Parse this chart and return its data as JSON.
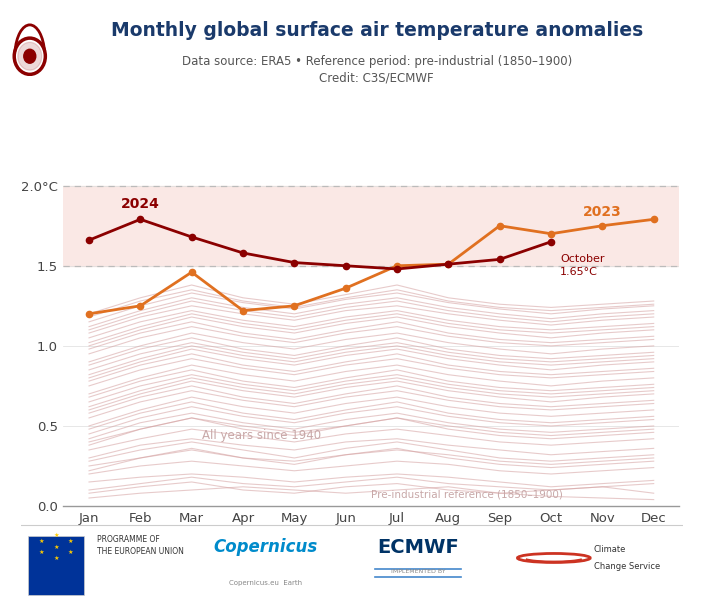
{
  "title": "Monthly global surface air temperature anomalies",
  "subtitle1": "Data source: ERA5 • Reference period: pre-industrial (1850–1900)",
  "subtitle2": "Credit: C3S/ECMWF",
  "months": [
    "Jan",
    "Feb",
    "Mar",
    "Apr",
    "May",
    "Jun",
    "Jul",
    "Aug",
    "Sep",
    "Oct",
    "Nov",
    "Dec"
  ],
  "data_2024": [
    1.66,
    1.79,
    1.68,
    1.58,
    1.52,
    1.5,
    1.48,
    1.51,
    1.54,
    1.65,
    null,
    null
  ],
  "data_2023": [
    1.2,
    1.25,
    1.46,
    1.22,
    1.25,
    1.36,
    1.5,
    1.51,
    1.75,
    1.7,
    1.75,
    1.79
  ],
  "color_2024": "#8B0000",
  "color_2023": "#E07020",
  "background_fill_color": "#FAE8E5",
  "threshold_1_5": 1.5,
  "threshold_2_0": 2.0,
  "ylim": [
    0.0,
    2.1
  ],
  "yticks": [
    0.0,
    0.5,
    1.0,
    1.5,
    2.0
  ],
  "label_2024": "2024",
  "label_2023": "2023",
  "all_years_label": "All years since 1940",
  "preindustrial_label": "Pre-industrial reference (1850–1900)",
  "historical_line_color": "#D4A0A0",
  "historical_years": [
    [
      0.05,
      0.08,
      0.1,
      0.12,
      0.1,
      0.08,
      0.1,
      0.12,
      0.08,
      0.06,
      0.05,
      0.04
    ],
    [
      0.08,
      0.12,
      0.15,
      0.1,
      0.08,
      0.12,
      0.14,
      0.1,
      0.08,
      0.1,
      0.12,
      0.08
    ],
    [
      0.15,
      0.18,
      0.2,
      0.18,
      0.15,
      0.18,
      0.2,
      0.18,
      0.15,
      0.12,
      0.14,
      0.16
    ],
    [
      0.2,
      0.25,
      0.28,
      0.25,
      0.22,
      0.25,
      0.28,
      0.26,
      0.22,
      0.2,
      0.22,
      0.24
    ],
    [
      0.25,
      0.3,
      0.35,
      0.3,
      0.28,
      0.32,
      0.35,
      0.32,
      0.28,
      0.26,
      0.28,
      0.3
    ],
    [
      0.3,
      0.38,
      0.42,
      0.38,
      0.35,
      0.4,
      0.42,
      0.38,
      0.35,
      0.32,
      0.34,
      0.36
    ],
    [
      0.35,
      0.42,
      0.48,
      0.44,
      0.4,
      0.45,
      0.48,
      0.44,
      0.4,
      0.38,
      0.4,
      0.42
    ],
    [
      0.4,
      0.48,
      0.55,
      0.5,
      0.46,
      0.5,
      0.55,
      0.5,
      0.46,
      0.44,
      0.46,
      0.48
    ],
    [
      0.45,
      0.55,
      0.62,
      0.56,
      0.52,
      0.58,
      0.62,
      0.56,
      0.52,
      0.5,
      0.52,
      0.54
    ],
    [
      0.5,
      0.6,
      0.68,
      0.62,
      0.58,
      0.64,
      0.68,
      0.62,
      0.58,
      0.56,
      0.58,
      0.6
    ],
    [
      0.55,
      0.65,
      0.72,
      0.66,
      0.62,
      0.68,
      0.72,
      0.66,
      0.62,
      0.6,
      0.62,
      0.64
    ],
    [
      0.6,
      0.7,
      0.78,
      0.72,
      0.68,
      0.74,
      0.78,
      0.72,
      0.68,
      0.65,
      0.68,
      0.7
    ],
    [
      0.65,
      0.75,
      0.82,
      0.76,
      0.72,
      0.78,
      0.82,
      0.76,
      0.72,
      0.7,
      0.72,
      0.74
    ],
    [
      0.7,
      0.8,
      0.88,
      0.82,
      0.78,
      0.84,
      0.88,
      0.82,
      0.78,
      0.75,
      0.78,
      0.8
    ],
    [
      0.75,
      0.85,
      0.92,
      0.86,
      0.82,
      0.88,
      0.92,
      0.86,
      0.82,
      0.8,
      0.82,
      0.84
    ],
    [
      0.8,
      0.9,
      0.98,
      0.92,
      0.88,
      0.94,
      0.98,
      0.92,
      0.88,
      0.85,
      0.88,
      0.9
    ],
    [
      0.85,
      0.95,
      1.02,
      0.96,
      0.92,
      0.98,
      1.02,
      0.96,
      0.92,
      0.9,
      0.92,
      0.94
    ],
    [
      0.9,
      1.0,
      1.08,
      1.02,
      0.98,
      1.04,
      1.08,
      1.02,
      0.98,
      0.95,
      0.98,
      1.0
    ],
    [
      0.95,
      1.05,
      1.12,
      1.06,
      1.02,
      1.08,
      1.12,
      1.06,
      1.02,
      1.0,
      1.02,
      1.04
    ],
    [
      1.0,
      1.1,
      1.18,
      1.12,
      1.08,
      1.14,
      1.18,
      1.12,
      1.08,
      1.05,
      1.08,
      1.1
    ],
    [
      0.22,
      0.3,
      0.36,
      0.3,
      0.26,
      0.32,
      0.36,
      0.3,
      0.26,
      0.24,
      0.26,
      0.28
    ],
    [
      0.42,
      0.52,
      0.58,
      0.52,
      0.48,
      0.54,
      0.58,
      0.52,
      0.48,
      0.46,
      0.48,
      0.5
    ],
    [
      0.62,
      0.72,
      0.8,
      0.74,
      0.7,
      0.76,
      0.8,
      0.74,
      0.7,
      0.68,
      0.7,
      0.72
    ],
    [
      0.82,
      0.92,
      1.0,
      0.94,
      0.9,
      0.96,
      1.0,
      0.94,
      0.9,
      0.88,
      0.9,
      0.92
    ],
    [
      1.02,
      1.12,
      1.2,
      1.14,
      1.1,
      1.16,
      1.2,
      1.14,
      1.1,
      1.08,
      1.1,
      1.12
    ],
    [
      1.05,
      1.15,
      1.22,
      1.16,
      1.12,
      1.18,
      1.22,
      1.16,
      1.12,
      1.1,
      1.12,
      1.14
    ],
    [
      1.08,
      1.18,
      1.25,
      1.2,
      1.16,
      1.22,
      1.25,
      1.2,
      1.16,
      1.13,
      1.16,
      1.18
    ],
    [
      1.1,
      1.2,
      1.28,
      1.22,
      1.18,
      1.24,
      1.28,
      1.22,
      1.18,
      1.15,
      1.18,
      1.2
    ],
    [
      1.12,
      1.22,
      1.3,
      1.24,
      1.2,
      1.26,
      1.3,
      1.24,
      1.2,
      1.17,
      1.2,
      1.22
    ],
    [
      1.15,
      1.25,
      1.33,
      1.27,
      1.23,
      1.29,
      1.33,
      1.27,
      1.23,
      1.2,
      1.23,
      1.25
    ],
    [
      0.1,
      0.14,
      0.18,
      0.14,
      0.12,
      0.15,
      0.18,
      0.14,
      0.12,
      0.1,
      0.12,
      0.14
    ],
    [
      0.28,
      0.35,
      0.4,
      0.35,
      0.3,
      0.36,
      0.4,
      0.35,
      0.3,
      0.28,
      0.3,
      0.32
    ],
    [
      0.48,
      0.58,
      0.65,
      0.58,
      0.54,
      0.6,
      0.65,
      0.58,
      0.54,
      0.52,
      0.54,
      0.56
    ],
    [
      0.68,
      0.78,
      0.85,
      0.78,
      0.74,
      0.8,
      0.85,
      0.78,
      0.74,
      0.72,
      0.74,
      0.76
    ],
    [
      0.88,
      0.98,
      1.05,
      0.98,
      0.94,
      1.0,
      1.05,
      0.98,
      0.94,
      0.92,
      0.94,
      0.96
    ],
    [
      1.18,
      1.28,
      1.35,
      1.28,
      1.24,
      1.3,
      1.35,
      1.28,
      1.24,
      1.22,
      1.24,
      1.26
    ],
    [
      0.38,
      0.48,
      0.55,
      0.48,
      0.44,
      0.5,
      0.55,
      0.48,
      0.44,
      0.42,
      0.44,
      0.46
    ],
    [
      0.58,
      0.68,
      0.75,
      0.68,
      0.64,
      0.7,
      0.75,
      0.68,
      0.64,
      0.62,
      0.64,
      0.66
    ],
    [
      0.78,
      0.88,
      0.95,
      0.88,
      0.84,
      0.9,
      0.95,
      0.88,
      0.84,
      0.82,
      0.84,
      0.86
    ],
    [
      0.98,
      1.08,
      1.15,
      1.08,
      1.04,
      1.1,
      1.15,
      1.08,
      1.04,
      1.02,
      1.04,
      1.06
    ],
    [
      1.2,
      1.3,
      1.38,
      1.3,
      1.26,
      1.32,
      1.38,
      1.3,
      1.26,
      1.24,
      1.26,
      1.28
    ]
  ]
}
